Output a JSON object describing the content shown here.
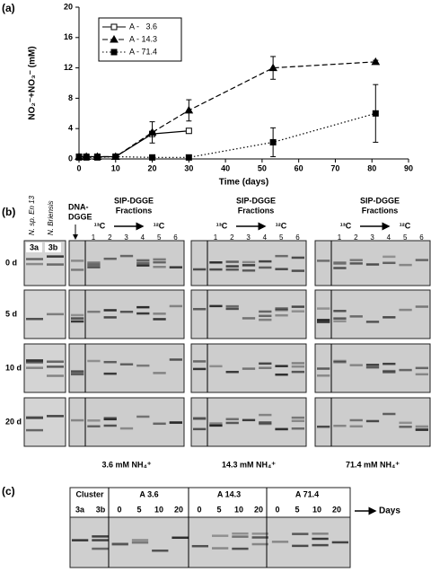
{
  "chart_data": {
    "type": "line",
    "panel_label": "(a)",
    "x_label": "Time (days)",
    "y_label": "NO₂⁻+NO₃⁻ (mM)",
    "xlim": [
      0,
      90
    ],
    "xticks": [
      0,
      10,
      20,
      30,
      40,
      50,
      60,
      70,
      80,
      90
    ],
    "ylim": [
      0,
      20
    ],
    "yticks": [
      0,
      4,
      8,
      12,
      16,
      20
    ],
    "legend": "upper left",
    "series": [
      {
        "name": "A -   3.6",
        "color": "#000000",
        "dash": "solid",
        "marker": "open-square",
        "x": [
          0,
          2,
          5,
          10,
          20,
          30
        ],
        "values": [
          0.3,
          0.3,
          0.3,
          0.3,
          3.3,
          3.7
        ],
        "errors": [
          null,
          null,
          null,
          null,
          null,
          null
        ]
      },
      {
        "name": "A - 14.3",
        "color": "#000000",
        "dash": "dashed",
        "marker": "triangle",
        "x": [
          0,
          2,
          5,
          10,
          20,
          30,
          53,
          81
        ],
        "values": [
          0.3,
          0.3,
          0.3,
          0.3,
          3.5,
          6.4,
          12.0,
          12.8
        ],
        "errors": [
          null,
          null,
          null,
          null,
          1.4,
          1.4,
          1.5,
          0.2
        ]
      },
      {
        "name": "A - 71.4",
        "color": "#000000",
        "dash": "dotted",
        "marker": "square",
        "x": [
          0,
          2,
          5,
          10,
          20,
          30,
          53,
          81
        ],
        "values": [
          0.2,
          0.2,
          0.2,
          0.3,
          0.2,
          0.2,
          2.2,
          6.0
        ],
        "errors": [
          null,
          null,
          null,
          null,
          null,
          null,
          1.9,
          3.8
        ]
      }
    ]
  },
  "panel_b": {
    "label": "(b)",
    "species": [
      "N. sp. En 13",
      "N. Briensis"
    ],
    "reference_lanes": [
      "3a",
      "3b"
    ],
    "dna_label": [
      "DNA-",
      "DGGE"
    ],
    "rows": [
      "0 d",
      "5 d",
      "10 d",
      "20 d"
    ],
    "groups": [
      {
        "header": [
          "SIP-DGGE",
          "Fractions"
        ],
        "heavy": "¹³C",
        "light": "¹²C",
        "lanes": [
          "1",
          "2",
          "3",
          "4",
          "5",
          "6"
        ],
        "label": "3.6 mM NH₄⁺"
      },
      {
        "header": [
          "SIP-DGGE",
          "Fractions"
        ],
        "heavy": "¹³C",
        "light": "¹²C",
        "lanes": [
          "1",
          "2",
          "3",
          "4",
          "5",
          "6"
        ],
        "label": "14.3 mM NH₄⁺"
      },
      {
        "header": [
          "SIP-DGGE",
          "Fractions"
        ],
        "heavy": "¹³C",
        "light": "¹²C",
        "lanes": [
          "1",
          "2",
          "3",
          "4",
          "5",
          "6"
        ],
        "label": "71.4 mM NH₄⁺"
      }
    ]
  },
  "panel_c": {
    "label": "(c)",
    "cluster": "Cluster",
    "cluster_lanes": [
      "3a",
      "3b"
    ],
    "groups": [
      {
        "name": "A 3.6",
        "lanes": [
          "0",
          "5",
          "10",
          "20"
        ]
      },
      {
        "name": "A 14.3",
        "lanes": [
          "0",
          "5",
          "10",
          "20"
        ]
      },
      {
        "name": "A 71.4",
        "lanes": [
          "0",
          "5",
          "10",
          "20"
        ]
      }
    ],
    "axis_label": "Days"
  }
}
